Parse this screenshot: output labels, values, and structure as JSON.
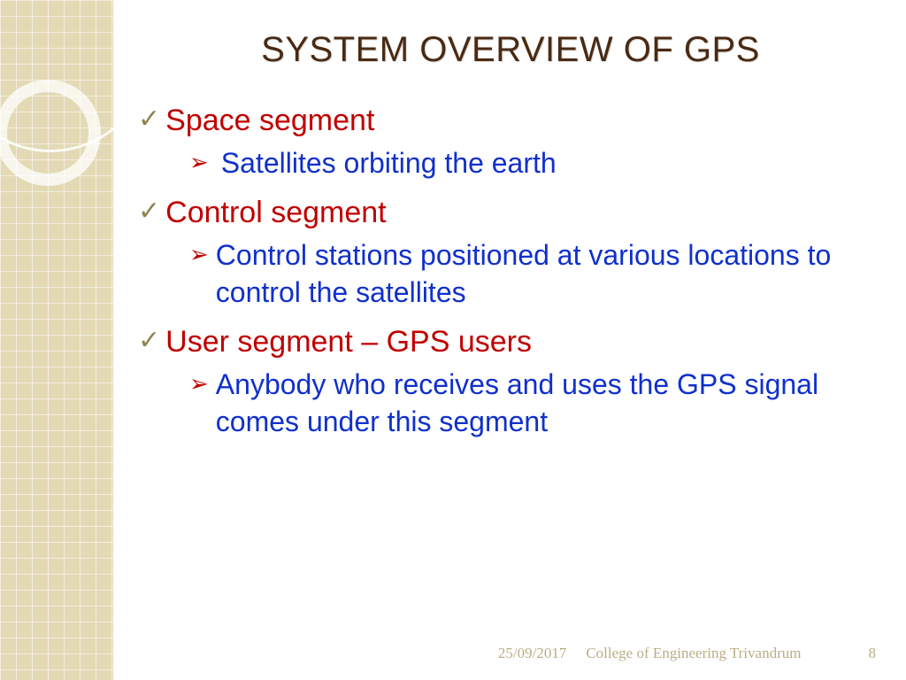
{
  "colors": {
    "title": "#4a2a12",
    "level1_text": "#c00000",
    "level2_text": "#1030cc",
    "check_bullet": "#8f8452",
    "arrow_bullet": "#c00000",
    "sidebar_fill": "#e3d9b4",
    "footer_text": "#b9ae85",
    "background": "#ffffff"
  },
  "typography": {
    "title_fontsize": 40,
    "level1_fontsize": 34,
    "level2_fontsize": 32,
    "footer_fontsize": 17
  },
  "title": "SYSTEM OVERVIEW OF GPS",
  "items": [
    {
      "label": "Space segment",
      "sub": "Satellites orbiting the earth"
    },
    {
      "label": "Control segment",
      "sub": "Control stations positioned at various locations to control the satellites"
    },
    {
      "label": "User segment – GPS users",
      "sub": "Anybody who receives and uses the GPS signal comes under this segment"
    }
  ],
  "footer": {
    "date": "25/09/2017",
    "org": "College of Engineering Trivandrum",
    "page": "8"
  }
}
